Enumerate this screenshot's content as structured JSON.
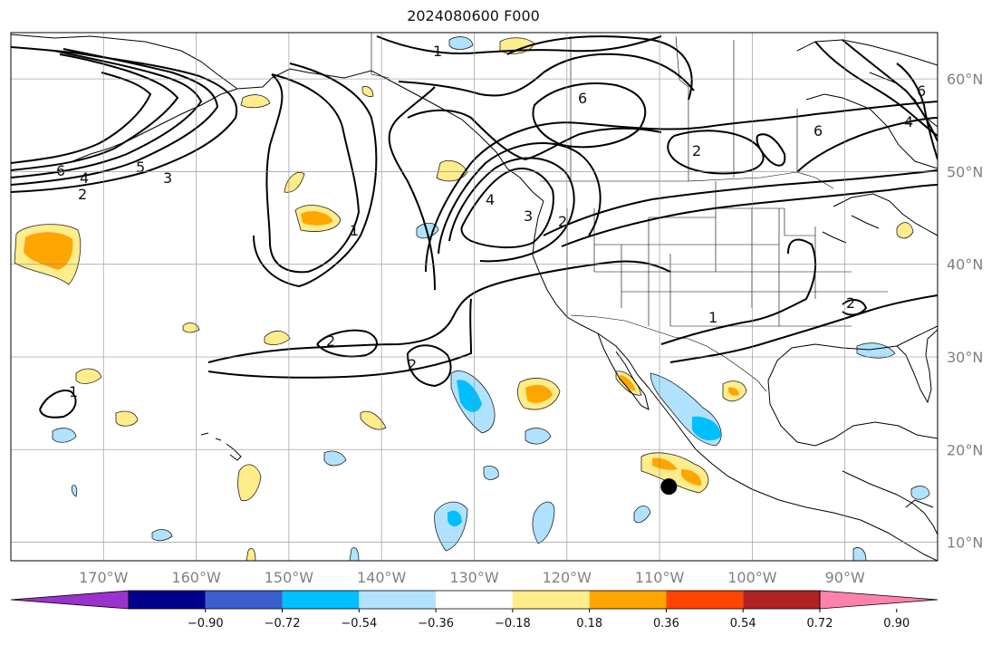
{
  "title": "2024080600 F000",
  "map": {
    "lon_range": [
      -180,
      -80
    ],
    "lat_range": [
      8,
      65
    ],
    "lon_ticks": [
      {
        "value": -170,
        "label": "170°W"
      },
      {
        "value": -160,
        "label": "160°W"
      },
      {
        "value": -150,
        "label": "150°W"
      },
      {
        "value": -140,
        "label": "140°W"
      },
      {
        "value": -130,
        "label": "130°W"
      },
      {
        "value": -120,
        "label": "120°W"
      },
      {
        "value": -110,
        "label": "110°W"
      },
      {
        "value": -100,
        "label": "100°W"
      },
      {
        "value": -90,
        "label": "90°W"
      }
    ],
    "lat_ticks": [
      {
        "value": 60,
        "label": "60°N"
      },
      {
        "value": 50,
        "label": "50°N"
      },
      {
        "value": 40,
        "label": "40°N"
      },
      {
        "value": 30,
        "label": "30°N"
      },
      {
        "value": 20,
        "label": "20°N"
      },
      {
        "value": 10,
        "label": "10°N"
      }
    ],
    "contour_labels": [
      "1",
      "2",
      "3",
      "4",
      "5",
      "6"
    ],
    "marker": {
      "lon": -109,
      "lat": 16
    }
  },
  "colorbar": {
    "colors": [
      "#9a32cd",
      "#00008b",
      "#3a5fcd",
      "#00bfff",
      "#b0e2ff",
      "#ffffff",
      "#ffec8b",
      "#ffa500",
      "#ff4500",
      "#b22222",
      "#ff82ab"
    ],
    "ticks": [
      "−0.90",
      "−0.72",
      "−0.54",
      "−0.36",
      "−0.18",
      "0.18",
      "0.36",
      "0.54",
      "0.72",
      "0.90"
    ]
  }
}
